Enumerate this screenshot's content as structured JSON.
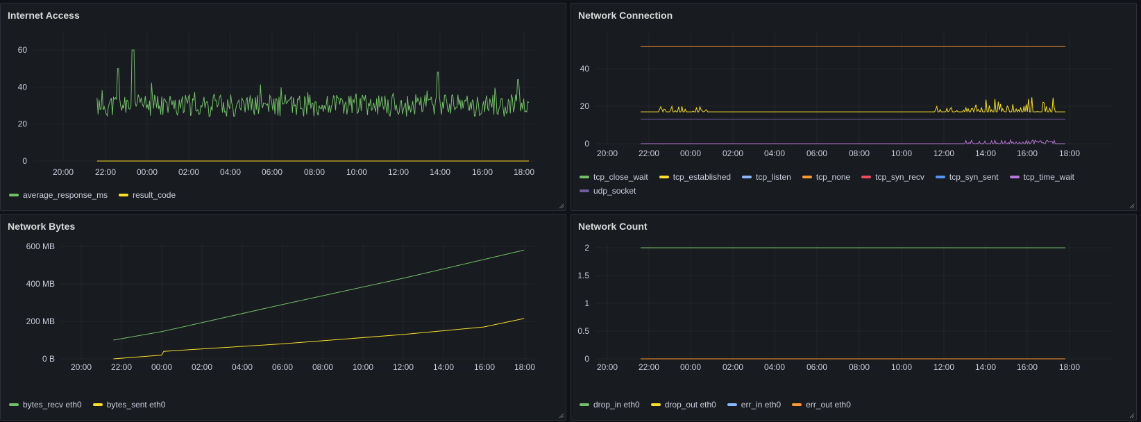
{
  "panels": [
    {
      "id": "internet",
      "title": "Internet Access",
      "y_ticks": [
        "0",
        "20",
        "40",
        "60"
      ],
      "x_ticks": [
        "20:00",
        "22:00",
        "00:00",
        "02:00",
        "04:00",
        "06:00",
        "08:00",
        "10:00",
        "12:00",
        "14:00",
        "16:00",
        "18:00"
      ],
      "legend": [
        {
          "label": "average_response_ms",
          "color": "#73bf69"
        },
        {
          "label": "result_code",
          "color": "#fade2a"
        }
      ]
    },
    {
      "id": "connection",
      "title": "Network Connection",
      "y_ticks": [
        "0",
        "20",
        "40"
      ],
      "x_ticks": [
        "20:00",
        "22:00",
        "00:00",
        "02:00",
        "04:00",
        "06:00",
        "08:00",
        "10:00",
        "12:00",
        "14:00",
        "16:00",
        "18:00"
      ],
      "legend": [
        {
          "label": "tcp_close_wait",
          "color": "#73bf69"
        },
        {
          "label": "tcp_established",
          "color": "#fade2a"
        },
        {
          "label": "tcp_listen",
          "color": "#8ab8ff"
        },
        {
          "label": "tcp_none",
          "color": "#ff9830"
        },
        {
          "label": "tcp_syn_recv",
          "color": "#f2495c"
        },
        {
          "label": "tcp_syn_sent",
          "color": "#5794f2"
        },
        {
          "label": "tcp_time_wait",
          "color": "#b877d9"
        },
        {
          "label": "udp_socket",
          "color": "#705da0"
        }
      ]
    },
    {
      "id": "bytes",
      "title": "Network Bytes",
      "y_ticks": [
        "0 B",
        "200 MB",
        "400 MB",
        "600 MB"
      ],
      "x_ticks": [
        "20:00",
        "22:00",
        "00:00",
        "02:00",
        "04:00",
        "06:00",
        "08:00",
        "10:00",
        "12:00",
        "14:00",
        "16:00",
        "18:00"
      ],
      "legend": [
        {
          "label": "bytes_recv eth0",
          "color": "#73bf69"
        },
        {
          "label": "bytes_sent eth0",
          "color": "#fade2a"
        }
      ]
    },
    {
      "id": "count",
      "title": "Network Count",
      "y_ticks": [
        "0",
        "0.5",
        "1",
        "1.5",
        "2"
      ],
      "x_ticks": [
        "20:00",
        "22:00",
        "00:00",
        "02:00",
        "04:00",
        "06:00",
        "08:00",
        "10:00",
        "12:00",
        "14:00",
        "16:00",
        "18:00"
      ],
      "legend": [
        {
          "label": "drop_in eth0",
          "color": "#73bf69"
        },
        {
          "label": "drop_out eth0",
          "color": "#fade2a"
        },
        {
          "label": "err_in eth0",
          "color": "#8ab8ff"
        },
        {
          "label": "err_out eth0",
          "color": "#ff9830"
        }
      ]
    }
  ],
  "chart_data": [
    {
      "type": "line",
      "title": "Internet Access",
      "x_range_hours": [
        19.0,
        42.0
      ],
      "ylim": [
        0,
        65
      ],
      "series": [
        {
          "name": "average_response_ms",
          "x_start": 21.6,
          "x_end": 42.0,
          "level": 30,
          "noise": 6,
          "spikes": [
            [
              23.3,
              60
            ],
            [
              22.6,
              50
            ],
            [
              37.7,
              48
            ],
            [
              41.5,
              44
            ]
          ]
        },
        {
          "name": "result_code",
          "x_start": 21.6,
          "x_end": 42.0,
          "values": [
            0
          ]
        }
      ]
    },
    {
      "type": "line",
      "title": "Network Connection",
      "x_range_hours": [
        19.0,
        42.0
      ],
      "ylim": [
        0,
        55
      ],
      "series": [
        {
          "name": "tcp_close_wait",
          "values": [
            0
          ]
        },
        {
          "name": "tcp_established",
          "x_start": 21.6,
          "x_end": 42.0,
          "level": 17,
          "bumps": [
            [
              23.3,
              20
            ],
            [
              36.5,
              21
            ],
            [
              38,
              24
            ],
            [
              40,
              25
            ]
          ]
        },
        {
          "name": "tcp_listen",
          "values": [
            0
          ]
        },
        {
          "name": "tcp_none",
          "x_start": 21.6,
          "x_end": 42.0,
          "values": [
            52
          ]
        },
        {
          "name": "tcp_syn_recv",
          "values": [
            0
          ]
        },
        {
          "name": "tcp_syn_sent",
          "values": [
            0
          ]
        },
        {
          "name": "tcp_time_wait",
          "x_start": 21.6,
          "x_end": 42.0,
          "level": 0,
          "bumps": [
            [
              38,
              2
            ],
            [
              40,
              2
            ]
          ]
        },
        {
          "name": "udp_socket",
          "x_start": 21.6,
          "x_end": 42.0,
          "values": [
            13
          ]
        }
      ]
    },
    {
      "type": "line",
      "title": "Network Bytes",
      "x_range_hours": [
        19.0,
        42.0
      ],
      "ylim_mb": [
        0,
        650
      ],
      "series": [
        {
          "name": "bytes_recv eth0",
          "x": [
            21.6,
            24,
            30,
            36,
            42
          ],
          "values": [
            100,
            145,
            290,
            430,
            580
          ]
        },
        {
          "name": "bytes_sent eth0",
          "x": [
            21.6,
            24,
            24.1,
            30,
            36,
            40,
            42
          ],
          "values": [
            0,
            20,
            40,
            80,
            130,
            170,
            215
          ]
        }
      ]
    },
    {
      "type": "line",
      "title": "Network Count",
      "x_range_hours": [
        19.0,
        42.0
      ],
      "ylim": [
        0,
        2.2
      ],
      "series": [
        {
          "name": "drop_in eth0",
          "x_start": 21.6,
          "x_end": 42.0,
          "values": [
            2
          ]
        },
        {
          "name": "drop_out eth0",
          "values": [
            0
          ]
        },
        {
          "name": "err_in eth0",
          "values": [
            0
          ]
        },
        {
          "name": "err_out eth0",
          "x_start": 21.6,
          "x_end": 42.0,
          "values": [
            0
          ]
        }
      ]
    }
  ]
}
